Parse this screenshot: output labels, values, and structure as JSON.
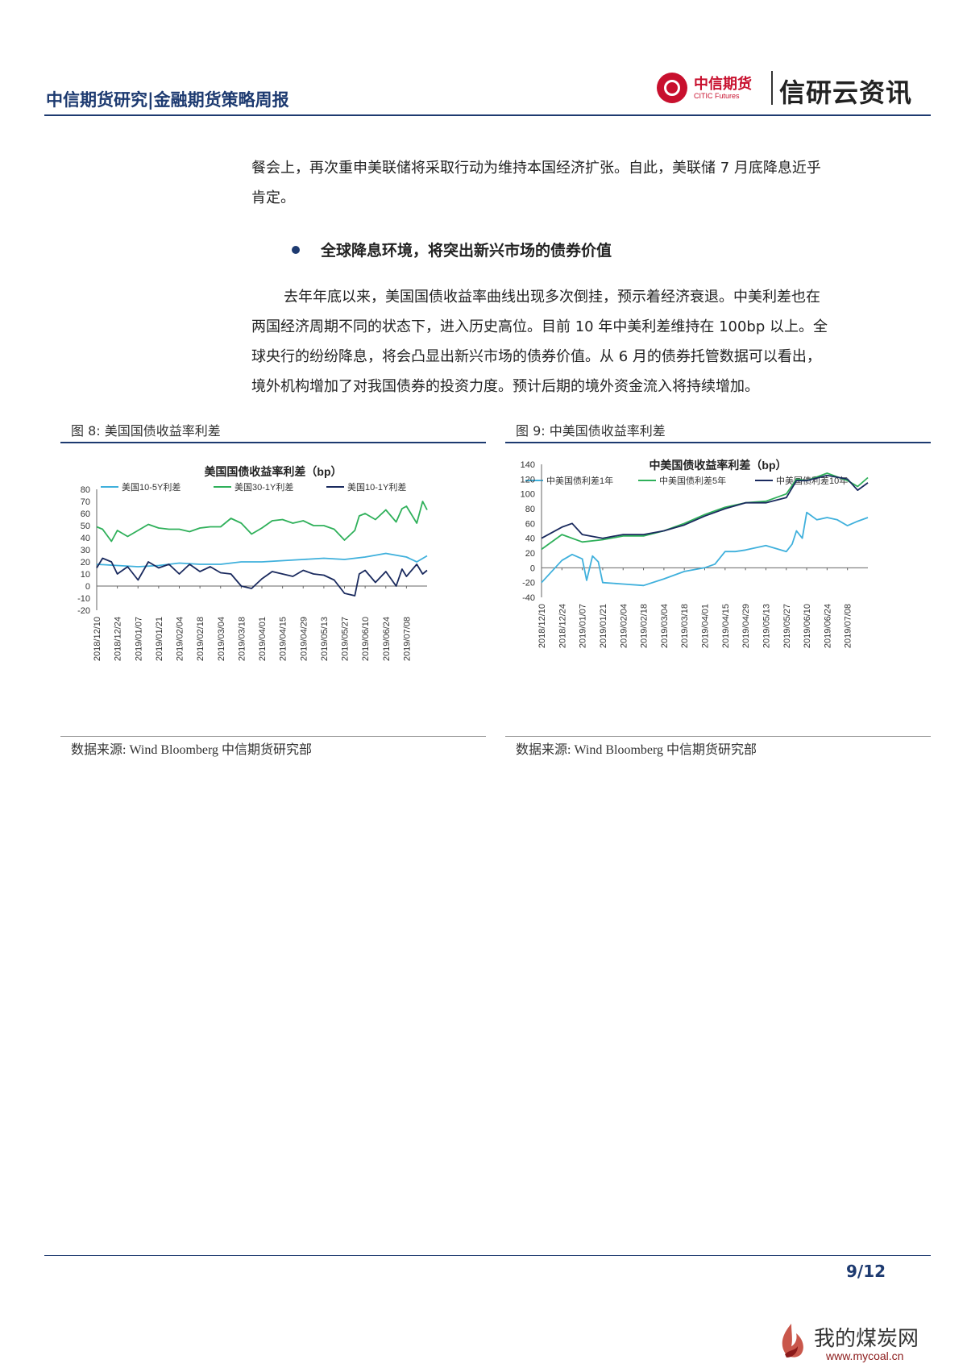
{
  "header": {
    "title": "中信期货研究|金融期货策略周报",
    "logo_cn": "中信期货",
    "logo_en": "CITIC Futures",
    "brand": "信研云资讯"
  },
  "body": {
    "para1_line1": "餐会上，再次重申美联储将采取行动为维持本国经济扩张。自此，美联储 7 月底降息近乎",
    "para1_line2": "肯定。",
    "bullet": "全球降息环境，将突出新兴市场的债券价值",
    "para2_line1": "去年年底以来，美国国债收益率曲线出现多次倒挂，预示着经济衰退。中美利差也在",
    "para2_line2": "两国经济周期不同的状态下，进入历史高位。目前 10 年中美利差维持在 100bp 以上。全",
    "para2_line3": "球央行的纷纷降息，将会凸显出新兴市场的债券价值。从 6 月的债券托管数据可以看出，",
    "para2_line4": "境外机构增加了对我国债券的投资力度。预计后期的境外资金流入将持续增加。"
  },
  "figures": {
    "fig8_caption": "图 8:   美国国债收益率利差",
    "fig9_caption": "图 9:   中美国债收益率利差",
    "fig8_source": "数据来源:  Wind Bloomberg    中信期货研究部",
    "fig9_source": "数据来源:  Wind Bloomberg    中信期货研究部"
  },
  "chart_data": [
    {
      "type": "line",
      "title": "美国国债收益率利差（bp）",
      "ylim": [
        -20,
        80
      ],
      "yticks": [
        80,
        70,
        60,
        50,
        40,
        30,
        20,
        10,
        0,
        -10,
        -20
      ],
      "xticks": [
        "2018/12/10",
        "2018/12/24",
        "2019/01/07",
        "2019/01/21",
        "2019/02/04",
        "2019/02/18",
        "2019/03/04",
        "2019/03/18",
        "2019/04/01",
        "2019/04/15",
        "2019/04/29",
        "2019/05/13",
        "2019/05/27",
        "2019/06/10",
        "2019/06/24",
        "2019/07/08"
      ],
      "x_end": "2019/07/22",
      "colors": [
        "#3fb0dc",
        "#2fb05a",
        "#1a2a5e"
      ],
      "series": [
        {
          "name": "美国10-5Y利差",
          "x": [
            "2018/12/10",
            "2018/12/24",
            "2019/01/07",
            "2019/01/21",
            "2019/02/04",
            "2019/02/18",
            "2019/03/04",
            "2019/03/18",
            "2019/04/01",
            "2019/04/15",
            "2019/04/29",
            "2019/05/13",
            "2019/05/27",
            "2019/06/10",
            "2019/06/24",
            "2019/07/08",
            "2019/07/15",
            "2019/07/22"
          ],
          "values": [
            18,
            17,
            16,
            17,
            19,
            18,
            18,
            20,
            20,
            21,
            22,
            23,
            22,
            24,
            27,
            24,
            20,
            25
          ]
        },
        {
          "name": "美国30-1Y利差",
          "x": [
            "2018/12/10",
            "2018/12/14",
            "2018/12/20",
            "2018/12/24",
            "2018/12/31",
            "2019/01/07",
            "2019/01/14",
            "2019/01/21",
            "2019/01/28",
            "2019/02/04",
            "2019/02/11",
            "2019/02/18",
            "2019/02/25",
            "2019/03/04",
            "2019/03/11",
            "2019/03/18",
            "2019/03/25",
            "2019/04/01",
            "2019/04/08",
            "2019/04/15",
            "2019/04/22",
            "2019/04/29",
            "2019/05/06",
            "2019/05/13",
            "2019/05/20",
            "2019/05/27",
            "2019/06/03",
            "2019/06/06",
            "2019/06/10",
            "2019/06/17",
            "2019/06/24",
            "2019/07/01",
            "2019/07/05",
            "2019/07/08",
            "2019/07/15",
            "2019/07/19",
            "2019/07/22"
          ],
          "values": [
            49,
            47,
            37,
            46,
            41,
            46,
            51,
            48,
            47,
            47,
            45,
            48,
            49,
            49,
            56,
            52,
            43,
            48,
            54,
            55,
            52,
            54,
            50,
            50,
            47,
            38,
            46,
            58,
            60,
            55,
            63,
            53,
            64,
            66,
            52,
            70,
            63
          ]
        },
        {
          "name": "美国10-1Y利差",
          "x": [
            "2018/12/10",
            "2018/12/14",
            "2018/12/20",
            "2018/12/24",
            "2018/12/31",
            "2019/01/07",
            "2019/01/14",
            "2019/01/21",
            "2019/01/28",
            "2019/02/04",
            "2019/02/11",
            "2019/02/18",
            "2019/02/25",
            "2019/03/04",
            "2019/03/11",
            "2019/03/18",
            "2019/03/25",
            "2019/04/01",
            "2019/04/08",
            "2019/04/15",
            "2019/04/22",
            "2019/04/29",
            "2019/05/06",
            "2019/05/13",
            "2019/05/20",
            "2019/05/27",
            "2019/06/03",
            "2019/06/06",
            "2019/06/10",
            "2019/06/17",
            "2019/06/24",
            "2019/07/01",
            "2019/07/05",
            "2019/07/08",
            "2019/07/15",
            "2019/07/19",
            "2019/07/22"
          ],
          "values": [
            15,
            23,
            20,
            10,
            16,
            5,
            20,
            15,
            18,
            10,
            18,
            12,
            16,
            11,
            10,
            0,
            -2,
            6,
            12,
            10,
            8,
            13,
            10,
            9,
            5,
            -6,
            -8,
            10,
            13,
            3,
            12,
            0,
            14,
            8,
            18,
            10,
            13
          ]
        }
      ]
    },
    {
      "type": "line",
      "title": "中美国债收益率利差（bp）",
      "ylim": [
        -40,
        140
      ],
      "yticks": [
        140,
        120,
        100,
        80,
        60,
        40,
        20,
        0,
        -20,
        -40
      ],
      "xticks": [
        "2018/12/10",
        "2018/12/24",
        "2019/01/07",
        "2019/01/21",
        "2019/02/04",
        "2019/02/18",
        "2019/03/04",
        "2019/03/18",
        "2019/04/01",
        "2019/04/15",
        "2019/04/29",
        "2019/05/13",
        "2019/05/27",
        "2019/06/10",
        "2019/06/24",
        "2019/07/08"
      ],
      "x_end": "2019/07/22",
      "colors": [
        "#3fb0dc",
        "#2fb05a",
        "#1a2a5e"
      ],
      "series": [
        {
          "name": "中美国债利差1年",
          "x": [
            "2018/12/10",
            "2018/12/24",
            "2018/12/31",
            "2019/01/07",
            "2019/01/10",
            "2019/01/14",
            "2019/01/18",
            "2019/01/21",
            "2019/02/04",
            "2019/02/18",
            "2019/03/04",
            "2019/03/18",
            "2019/04/01",
            "2019/04/08",
            "2019/04/15",
            "2019/04/22",
            "2019/04/29",
            "2019/05/13",
            "2019/05/27",
            "2019/05/31",
            "2019/06/03",
            "2019/06/07",
            "2019/06/10",
            "2019/06/17",
            "2019/06/24",
            "2019/07/01",
            "2019/07/08",
            "2019/07/15",
            "2019/07/22"
          ],
          "values": [
            -20,
            10,
            18,
            12,
            -17,
            16,
            8,
            -20,
            -22,
            -24,
            -15,
            -5,
            0,
            5,
            22,
            22,
            24,
            30,
            22,
            32,
            50,
            40,
            75,
            65,
            68,
            65,
            57,
            63,
            68
          ]
        },
        {
          "name": "中美国债利差5年",
          "x": [
            "2018/12/10",
            "2018/12/24",
            "2019/01/07",
            "2019/01/21",
            "2019/02/04",
            "2019/02/18",
            "2019/03/04",
            "2019/03/18",
            "2019/04/01",
            "2019/04/15",
            "2019/04/29",
            "2019/05/13",
            "2019/05/27",
            "2019/06/03",
            "2019/06/10",
            "2019/06/24",
            "2019/07/08",
            "2019/07/15",
            "2019/07/22"
          ],
          "values": [
            25,
            45,
            35,
            38,
            43,
            43,
            50,
            60,
            72,
            82,
            88,
            90,
            100,
            120,
            118,
            128,
            118,
            110,
            122
          ]
        },
        {
          "name": "中美国债利差10年",
          "x": [
            "2018/12/10",
            "2018/12/24",
            "2018/12/31",
            "2019/01/07",
            "2019/01/21",
            "2019/02/04",
            "2019/02/18",
            "2019/03/04",
            "2019/03/18",
            "2019/04/01",
            "2019/04/15",
            "2019/04/29",
            "2019/05/13",
            "2019/05/27",
            "2019/06/03",
            "2019/06/10",
            "2019/06/24",
            "2019/07/08",
            "2019/07/15",
            "2019/07/22"
          ],
          "values": [
            40,
            55,
            60,
            45,
            40,
            45,
            45,
            50,
            58,
            70,
            80,
            88,
            88,
            95,
            118,
            118,
            125,
            120,
            105,
            115
          ]
        }
      ]
    }
  ],
  "footer": {
    "page": "9/12",
    "watermark": "我的煤炭网",
    "watermark_url": "www.mycoal.cn"
  }
}
